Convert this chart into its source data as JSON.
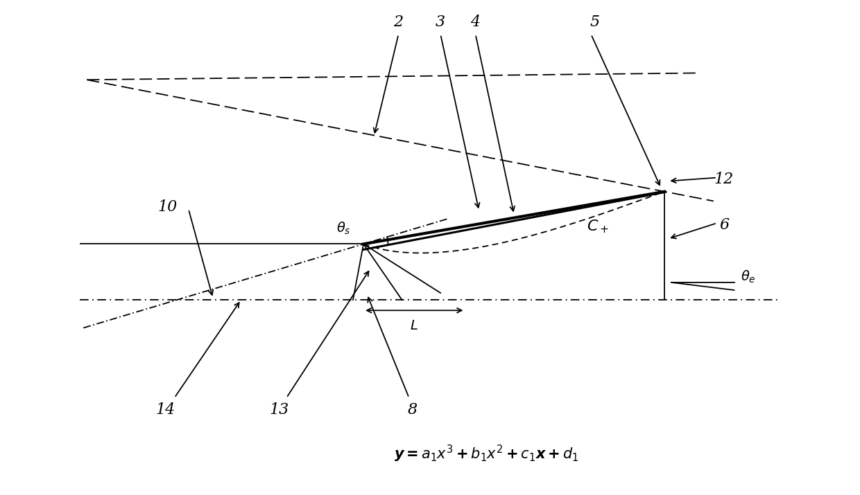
{
  "bg_color": "#ffffff",
  "line_color": "#000000",
  "fig_width": 12.4,
  "fig_height": 7.15
}
